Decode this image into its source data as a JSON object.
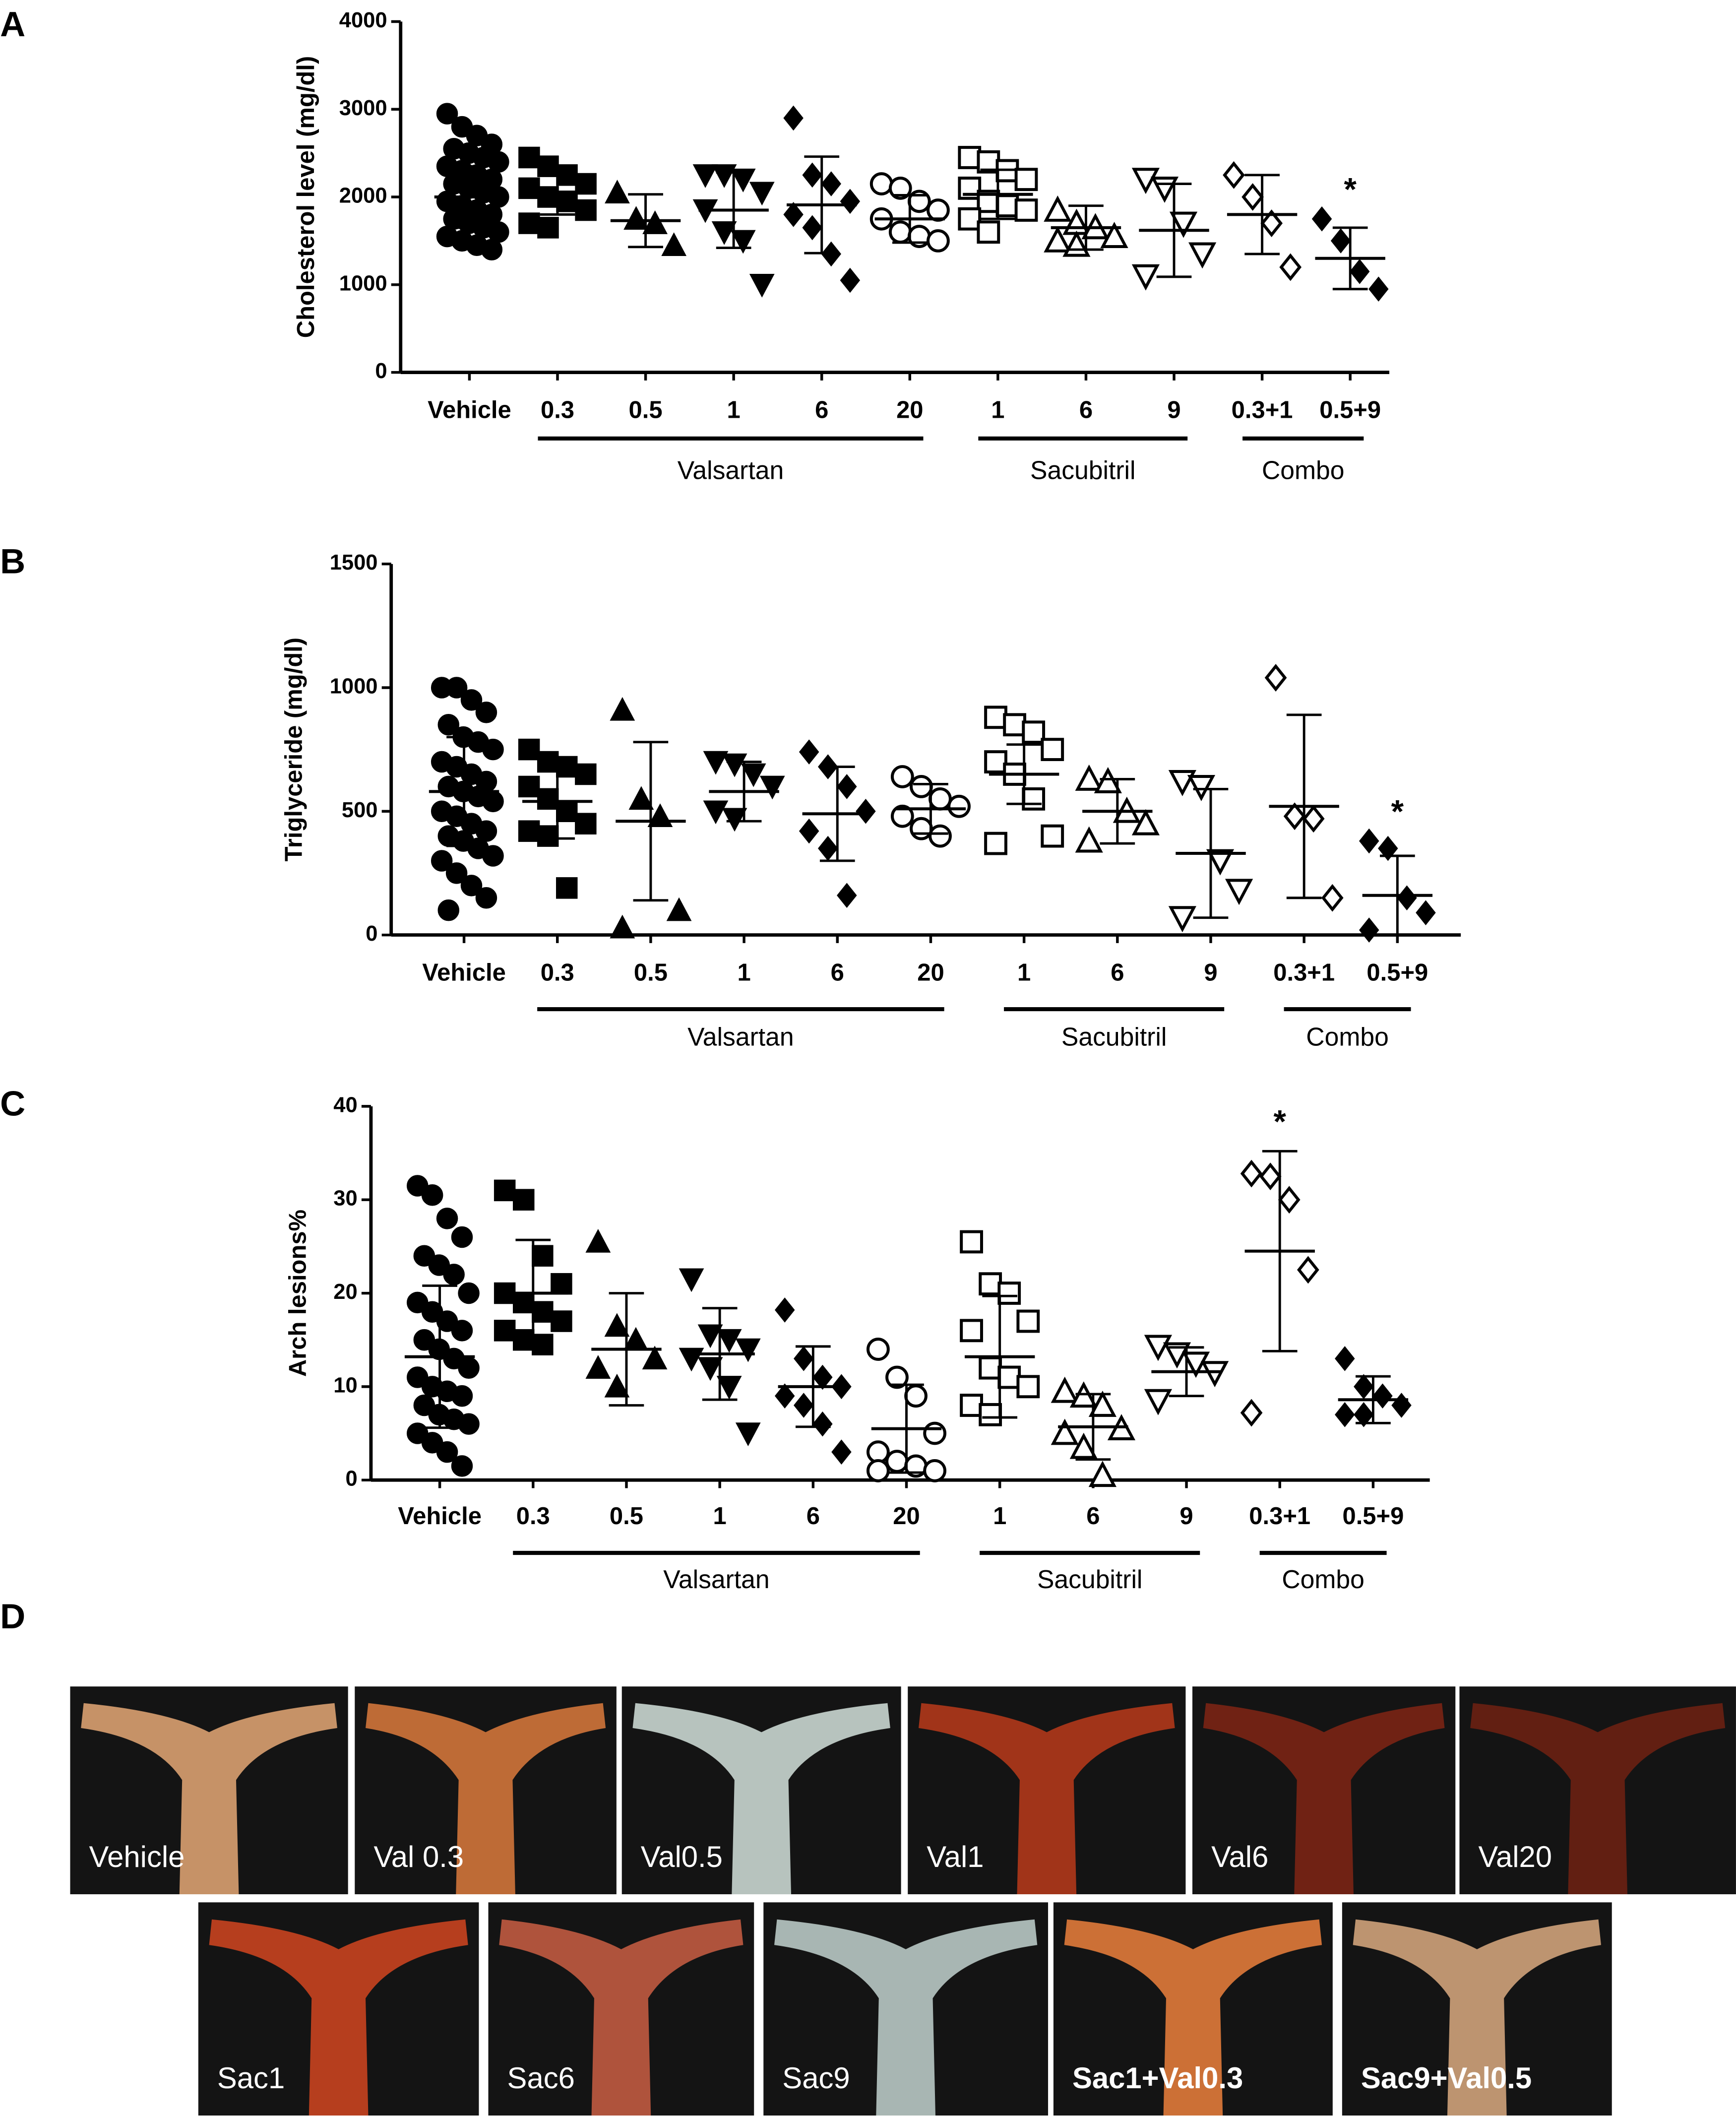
{
  "chart_data": [
    {
      "type": "dot",
      "panel": "A",
      "y_label": "Cholesterol level (mg/dl)",
      "ylim": [
        0,
        4000
      ],
      "yticks": [
        0,
        1000,
        2000,
        3000,
        4000
      ],
      "categories": [
        "Vehicle",
        "0.3",
        "0.5",
        "1",
        "6",
        "20",
        "1",
        "6",
        "9",
        "0.3+1",
        "0.5+9"
      ],
      "markers": [
        "circle-filled",
        "square-filled",
        "triangle-up-filled",
        "triangle-down-filled",
        "diamond-filled",
        "circle-open",
        "square-open",
        "triangle-up-open",
        "triangle-down-open",
        "diamond-open",
        "diamond-filled"
      ],
      "points": [
        [
          2950,
          2800,
          2700,
          2600,
          2550,
          2500,
          2450,
          2400,
          2350,
          2300,
          2250,
          2200,
          2150,
          2100,
          2050,
          2000,
          1950,
          1900,
          1850,
          1800,
          1750,
          1700,
          1650,
          1600,
          1550,
          1500,
          1450,
          1400
        ],
        [
          2450,
          2350,
          2250,
          2150,
          2100,
          2000,
          1950,
          1850,
          1700,
          1650
        ],
        [
          2050,
          1750,
          1700,
          1450
        ],
        [
          2250,
          2250,
          2200,
          2050,
          1850,
          1600,
          1500,
          1000
        ],
        [
          2900,
          2250,
          2150,
          1950,
          1800,
          1650,
          1350,
          1050
        ],
        [
          2150,
          2100,
          1950,
          1850,
          1750,
          1600,
          1550,
          1500
        ],
        [
          2450,
          2400,
          2300,
          2200,
          2100,
          1950,
          1900,
          1850,
          1750,
          1600
        ],
        [
          1850,
          1700,
          1650,
          1550,
          1500,
          1450
        ],
        [
          2200,
          2100,
          1700,
          1350,
          1100
        ],
        [
          2250,
          2000,
          1700,
          1200
        ],
        [
          1750,
          1500,
          1150,
          950
        ]
      ],
      "mean": [
        2000,
        2050,
        1730,
        1850,
        1910,
        1750,
        2030,
        1650,
        1620,
        1800,
        1300
      ],
      "sd": [
        350,
        250,
        300,
        430,
        550,
        270,
        280,
        250,
        530,
        450,
        350
      ],
      "brackets": [
        {
          "label": "Valsartan",
          "start": 1,
          "end": 5
        },
        {
          "label": "Sacubitril",
          "start": 6,
          "end": 8
        },
        {
          "label": "Combo",
          "start": 9,
          "end": 10
        }
      ],
      "significance": [
        {
          "index": 10,
          "label": "*"
        }
      ]
    },
    {
      "type": "dot",
      "panel": "B",
      "y_label": "Triglyceride (mg/dl)",
      "ylim": [
        0,
        1500
      ],
      "yticks": [
        0,
        500,
        1000,
        1500
      ],
      "categories": [
        "Vehicle",
        "0.3",
        "0.5",
        "1",
        "6",
        "20",
        "1",
        "6",
        "9",
        "0.3+1",
        "0.5+9"
      ],
      "markers": [
        "circle-filled",
        "square-filled",
        "triangle-up-filled",
        "triangle-down-filled",
        "diamond-filled",
        "circle-open",
        "square-open",
        "triangle-up-open",
        "triangle-down-open",
        "diamond-open",
        "diamond-filled"
      ],
      "points": [
        [
          1000,
          1000,
          950,
          900,
          850,
          800,
          780,
          750,
          700,
          680,
          650,
          620,
          600,
          580,
          560,
          540,
          500,
          480,
          450,
          420,
          400,
          380,
          350,
          320,
          300,
          250,
          200,
          150,
          100
        ],
        [
          750,
          700,
          680,
          650,
          600,
          550,
          500,
          450,
          420,
          400,
          190
        ],
        [
          910,
          550,
          480,
          100,
          30
        ],
        [
          700,
          690,
          650,
          600,
          500,
          470
        ],
        [
          740,
          680,
          600,
          500,
          420,
          350,
          160
        ],
        [
          640,
          600,
          550,
          520,
          480,
          430,
          400
        ],
        [
          880,
          850,
          820,
          750,
          700,
          650,
          550,
          400,
          370
        ],
        [
          630,
          620,
          500,
          450,
          380
        ],
        [
          620,
          600,
          300,
          180,
          70
        ],
        [
          1040,
          480,
          470,
          150
        ],
        [
          380,
          350,
          150,
          90,
          20
        ]
      ],
      "mean": [
        580,
        540,
        460,
        580,
        490,
        510,
        650,
        500,
        330,
        520,
        160
      ],
      "sd": [
        220,
        150,
        320,
        120,
        190,
        100,
        120,
        130,
        260,
        370,
        160
      ],
      "brackets": [
        {
          "label": "Valsartan",
          "start": 1,
          "end": 5
        },
        {
          "label": "Sacubitril",
          "start": 6,
          "end": 8
        },
        {
          "label": "Combo",
          "start": 9,
          "end": 10
        }
      ],
      "significance": [
        {
          "index": 10,
          "label": "*"
        }
      ]
    },
    {
      "type": "dot",
      "panel": "C",
      "y_label": "Arch lesions%",
      "ylim": [
        0,
        40
      ],
      "yticks": [
        0,
        10,
        20,
        30,
        40
      ],
      "categories": [
        "Vehicle",
        "0.3",
        "0.5",
        "1",
        "6",
        "20",
        "1",
        "6",
        "9",
        "0.3+1",
        "0.5+9"
      ],
      "markers": [
        "circle-filled",
        "square-filled",
        "triangle-up-filled",
        "triangle-down-filled",
        "diamond-filled",
        "circle-open",
        "square-open",
        "triangle-up-open",
        "triangle-down-open",
        "diamond-open",
        "diamond-filled"
      ],
      "points": [
        [
          31.5,
          30.5,
          28,
          26,
          24,
          23,
          22,
          20,
          19,
          18,
          17,
          16,
          15,
          14,
          13,
          12,
          11,
          10,
          9.5,
          9,
          8,
          7,
          6.5,
          6,
          5,
          4,
          3,
          1.5
        ],
        [
          31,
          30,
          24,
          21,
          20,
          19,
          18,
          17,
          16,
          15,
          14.5
        ],
        [
          25.5,
          16.5,
          15,
          13,
          12,
          10
        ],
        [
          21.5,
          15.5,
          15,
          14,
          13,
          12,
          10,
          5
        ],
        [
          18.2,
          13,
          11,
          10,
          9,
          8,
          6,
          3
        ],
        [
          14,
          11,
          9,
          5,
          3,
          2,
          1.5,
          1,
          1
        ],
        [
          25.5,
          21,
          20,
          17,
          16,
          12,
          11,
          10,
          8,
          7
        ],
        [
          9.5,
          9,
          8,
          5.5,
          5,
          3.5,
          0.5
        ],
        [
          14.3,
          13.5,
          12.5,
          11.5,
          8.5
        ],
        [
          32.8,
          32.5,
          30,
          22.5,
          7.2
        ],
        [
          13,
          10,
          9,
          8,
          7,
          7
        ]
      ],
      "mean": [
        13.2,
        20,
        14,
        13.5,
        10,
        5.5,
        13.2,
        5.7,
        11.6,
        24.5,
        8.6
      ],
      "sd": [
        7.6,
        5.7,
        6,
        4.9,
        4.3,
        4.7,
        6.5,
        3.5,
        2.6,
        10.7,
        2.5
      ],
      "brackets": [
        {
          "label": "Valsartan",
          "start": 1,
          "end": 5
        },
        {
          "label": "Sacubitril",
          "start": 6,
          "end": 8
        },
        {
          "label": "Combo",
          "start": 9,
          "end": 10
        }
      ],
      "significance": [
        {
          "index": 9,
          "label": "*"
        }
      ]
    }
  ],
  "photos": {
    "panel": "D",
    "top_row": [
      "Vehicle",
      "Val 0.3",
      "Val0.5",
      "Val1",
      "Val6",
      "Val20"
    ],
    "bottom_row": [
      "Sac1",
      "Sac6",
      "Sac9",
      "Sac1+Val0.3",
      "Sac9+Val0.5"
    ]
  }
}
